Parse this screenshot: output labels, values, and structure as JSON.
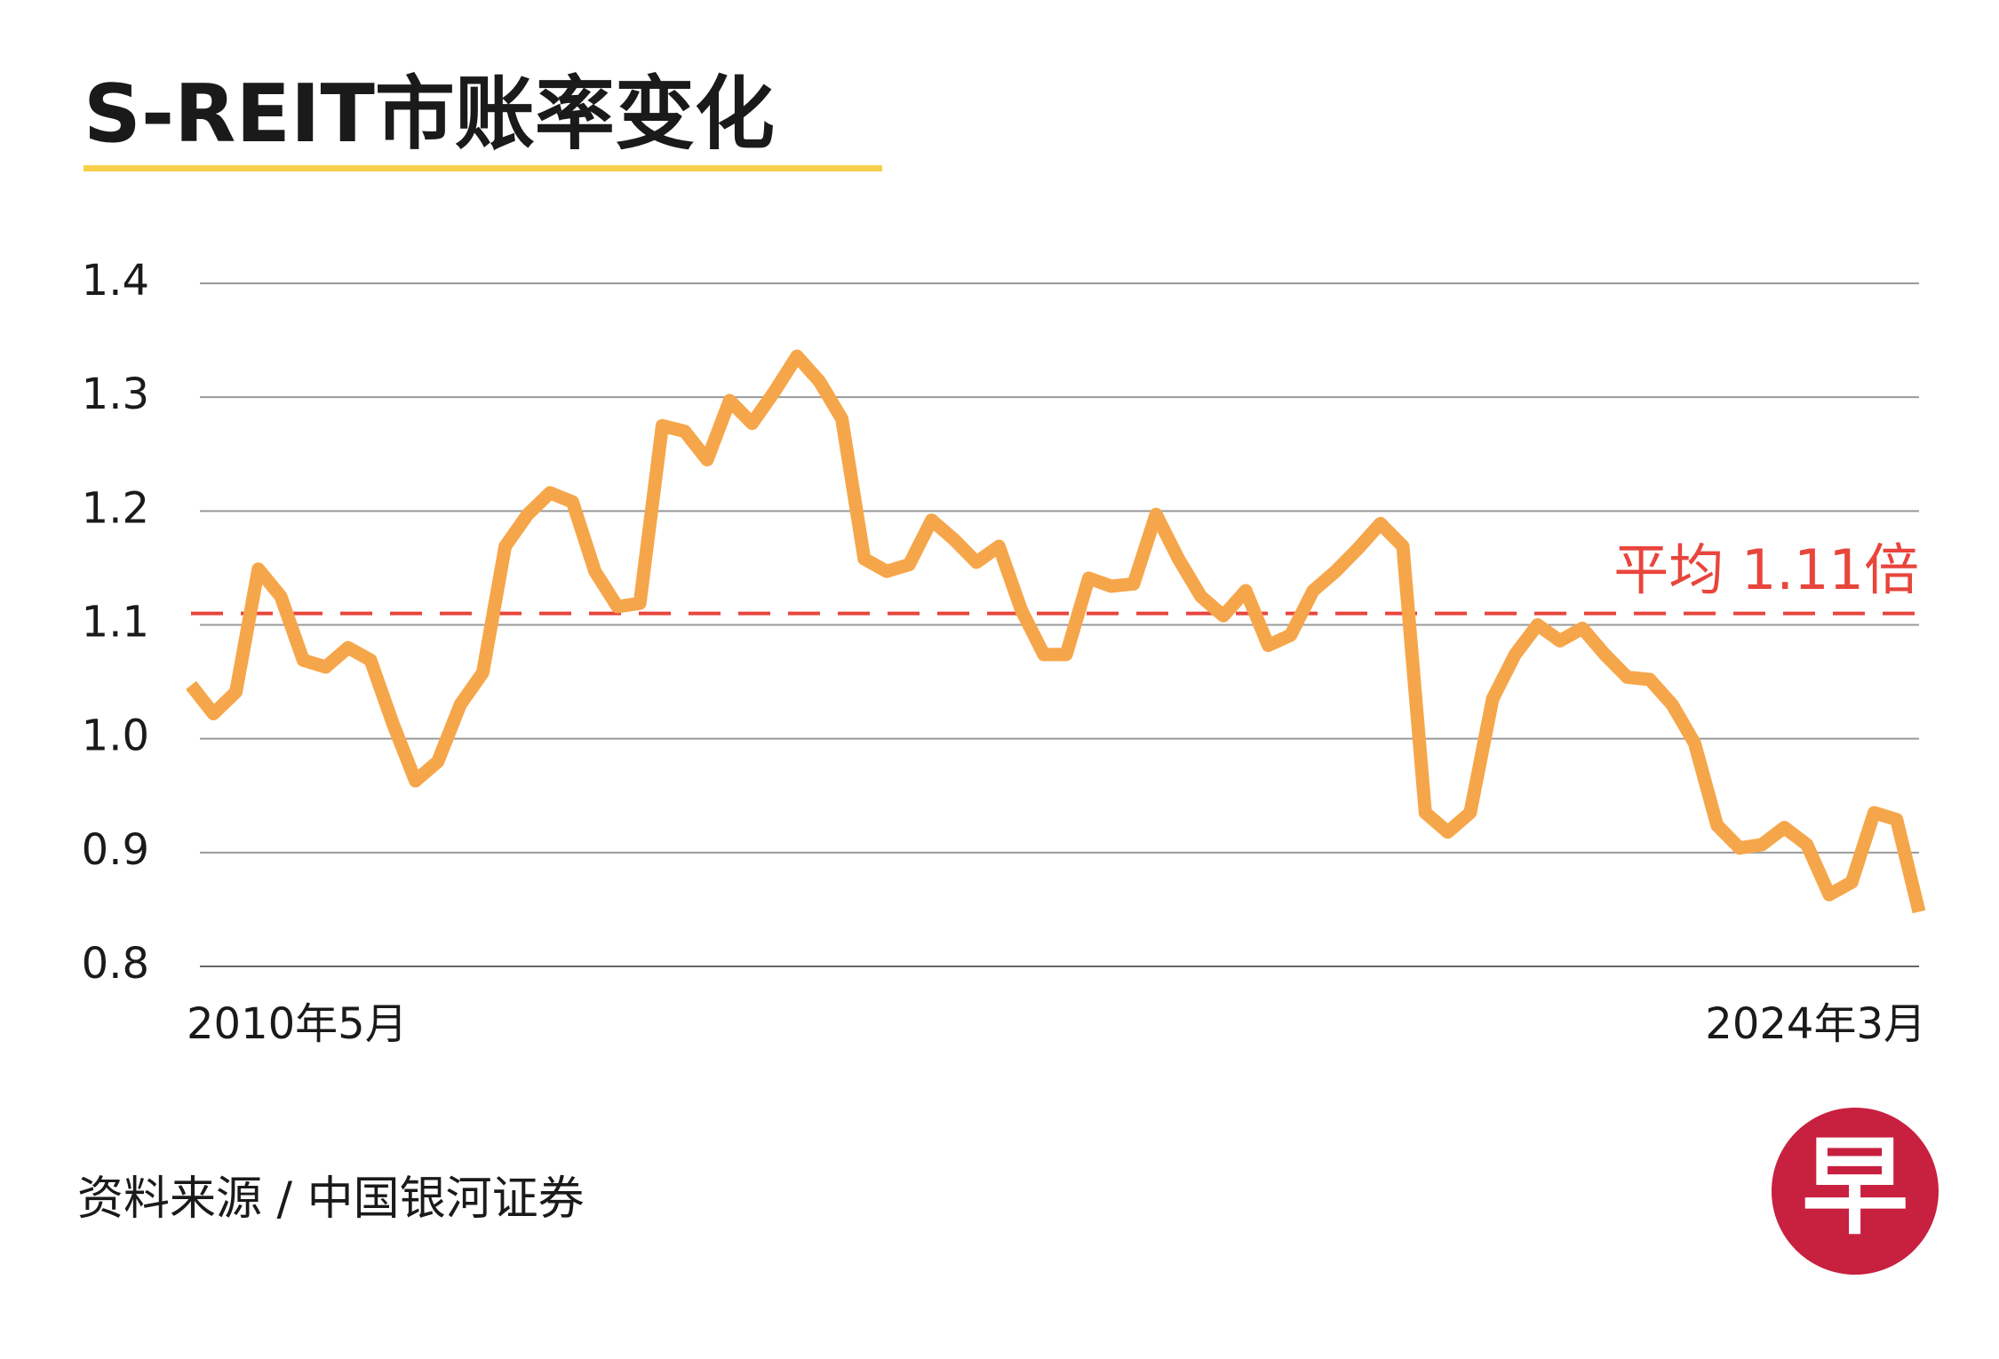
{
  "chart_data": {
    "type": "line",
    "title": "S-REIT市账率变化",
    "source": "资料来源 / 中国银河证券",
    "logo": "早",
    "categories": [
      "2010年5月",
      null,
      null,
      null,
      null,
      null,
      null,
      null,
      null,
      null,
      null,
      null,
      null,
      null,
      null,
      null,
      null,
      null,
      null,
      null,
      null,
      null,
      null,
      null,
      null,
      null,
      null,
      null,
      null,
      null,
      null,
      null,
      null,
      null,
      null,
      null,
      null,
      null,
      null,
      null,
      null,
      null,
      null,
      null,
      null,
      null,
      null,
      null,
      null,
      null,
      null,
      null,
      null,
      null,
      null,
      null,
      null,
      null,
      null,
      null,
      null,
      null,
      null,
      null,
      null,
      null,
      null,
      null,
      null,
      null,
      null,
      null,
      null,
      null,
      null,
      null,
      null,
      "2024年3月"
    ],
    "series": [
      {
        "name": "市账率",
        "color": "#f6a64a",
        "values": [
          1.047,
          1.022,
          1.041,
          1.149,
          1.125,
          1.069,
          1.063,
          1.08,
          1.069,
          1.013,
          0.963,
          0.98,
          1.03,
          1.058,
          1.169,
          1.197,
          1.216,
          1.208,
          1.147,
          1.116,
          1.119,
          1.275,
          1.27,
          1.245,
          1.297,
          1.277,
          1.305,
          1.336,
          1.314,
          1.281,
          1.158,
          1.147,
          1.153,
          1.192,
          1.175,
          1.155,
          1.169,
          1.113,
          1.074,
          1.074,
          1.141,
          1.134,
          1.136,
          1.197,
          1.158,
          1.125,
          1.108,
          1.13,
          1.082,
          1.091,
          1.13,
          1.147,
          1.167,
          1.189,
          1.169,
          0.935,
          0.918,
          0.935,
          1.035,
          1.074,
          1.1,
          1.086,
          1.097,
          1.074,
          1.054,
          1.052,
          1.03,
          0.996,
          0.924,
          0.904,
          0.907,
          0.922,
          0.907,
          0.863,
          0.874,
          0.935,
          0.929,
          0.848
        ]
      }
    ],
    "average": {
      "label": "平均 1.11倍",
      "value": 1.11,
      "color": "#e8453c"
    },
    "ylim": [
      0.8,
      1.4
    ],
    "yticks": [
      {
        "value": 0.8,
        "label": "0.8"
      },
      {
        "value": 0.9,
        "label": "0.9"
      },
      {
        "value": 1.0,
        "label": "1.0"
      },
      {
        "value": 1.1,
        "label": "1.1"
      },
      {
        "value": 1.2,
        "label": "1.2"
      },
      {
        "value": 1.3,
        "label": "1.3"
      },
      {
        "value": 1.4,
        "label": "1.4"
      }
    ],
    "grid": true
  }
}
